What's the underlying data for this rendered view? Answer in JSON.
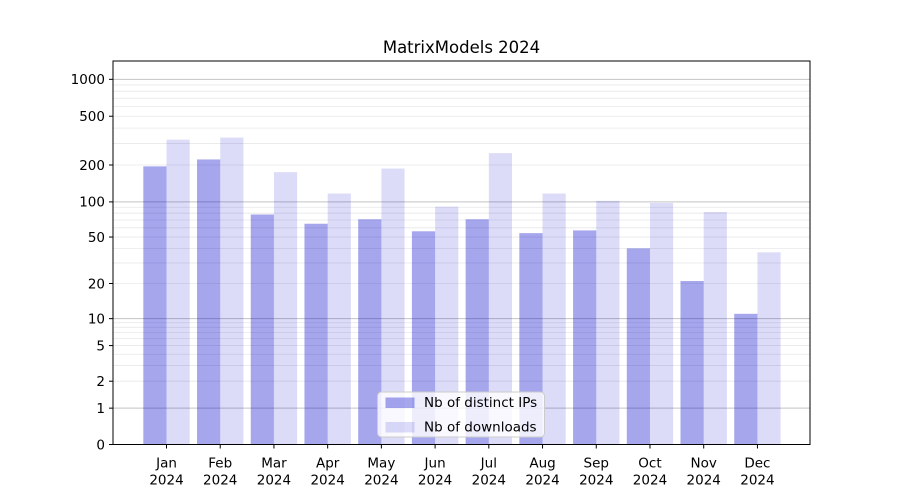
{
  "chart_data": {
    "type": "bar",
    "title": "MatrixModels 2024",
    "categories": [
      "Jan",
      "Feb",
      "Mar",
      "Apr",
      "May",
      "Jun",
      "Jul",
      "Aug",
      "Sep",
      "Oct",
      "Nov",
      "Dec"
    ],
    "year_label": "2024",
    "series": [
      {
        "name": "Nb of distinct IPs",
        "color": "#a6a6ec",
        "fill": "rgba(0,0,202,0.35)",
        "values": [
          195,
          222,
          78,
          65,
          71,
          56,
          71,
          54,
          57,
          40,
          21,
          11
        ]
      },
      {
        "name": "Nb of downloads",
        "color": "#dcdcf8",
        "fill": "rgba(0,0,202,0.137)",
        "values": [
          322,
          335,
          175,
          117,
          187,
          91,
          250,
          117,
          102,
          98,
          82,
          37
        ]
      }
    ],
    "xlabel": "",
    "ylabel": "",
    "yscale": "symlog",
    "ytick_labels": [
      "0",
      "1",
      "2",
      "5",
      "10",
      "20",
      "50",
      "100",
      "200",
      "500",
      "1000"
    ],
    "ytick_values": [
      0,
      1,
      2,
      5,
      10,
      20,
      50,
      100,
      200,
      500,
      1000
    ],
    "ylim": [
      0,
      1400
    ],
    "grid": true,
    "legend_position": "lower center",
    "colors": {
      "major_grid": "#c3c3c3",
      "minor_grid": "#e8e8e8",
      "axis": "#000000",
      "legend_border": "#cccccc",
      "legend_bg": "rgba(255,255,255,0.8)"
    }
  }
}
